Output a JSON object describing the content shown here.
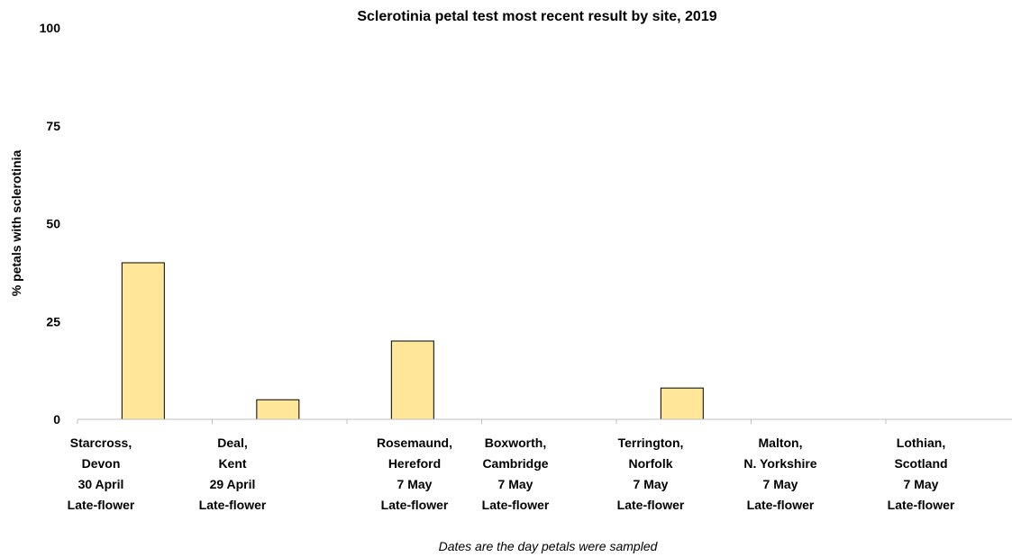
{
  "chart_data": {
    "type": "bar",
    "title": "Sclerotinia petal test most recent result by site, 2019",
    "ylabel": "% petals with sclerotinia",
    "xlabel": "",
    "ylim": [
      0,
      100
    ],
    "yticks": [
      0,
      25,
      50,
      75,
      100
    ],
    "grid": false,
    "legend": "none",
    "categories": [
      [
        "Starcross,",
        "Devon",
        "30 April",
        "Late-flower"
      ],
      [
        "Deal,",
        "Kent",
        "29 April",
        "Late-flower"
      ],
      [
        "Rosemaund,",
        "Hereford",
        "7 May",
        "Late-flower"
      ],
      [
        "Boxworth,",
        "Cambridge",
        "7 May",
        "Late-flower"
      ],
      [
        "Terrington,",
        "Norfolk",
        "7 May",
        "Late-flower"
      ],
      [
        "Malton,",
        "N. Yorkshire",
        "7 May",
        "Late-flower"
      ],
      [
        "Lothian,",
        "Scotland",
        "7 May",
        "Late-flower"
      ]
    ],
    "values": [
      40,
      5,
      20,
      0,
      8,
      0,
      0
    ],
    "bar_color": "#ffe699",
    "bar_edge_color": "#000000",
    "note": "Dates are the day petals were sampled"
  }
}
